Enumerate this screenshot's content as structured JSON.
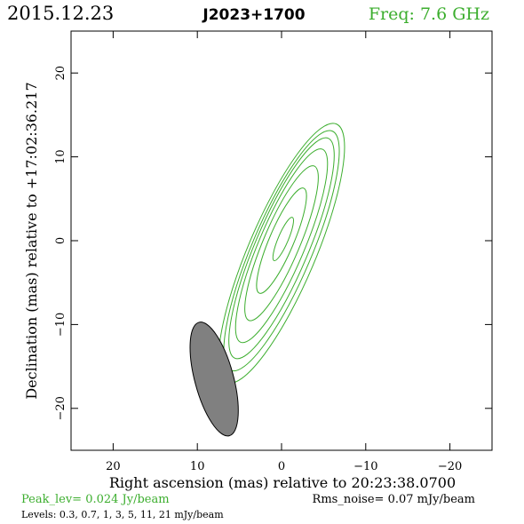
{
  "header": {
    "date": "2015.12.23",
    "source": "J2023+1700",
    "frequency": "Freq: 7.6 GHz"
  },
  "footer": {
    "peak": "Peak_lev=  0.024 Jy/beam",
    "rms": "Rms_noise= 0.07 mJy/beam",
    "levels": "Levels: 0.3, 0.7,   1,   3,   5,  11,  21 mJy/beam"
  },
  "colors": {
    "contour": "#3cae2e",
    "beam_fill": "#808080",
    "frame": "#000000"
  },
  "chart_data": {
    "type": "contour",
    "title": "J2023+1700",
    "xlabel": "Right ascension (mas) relative to 20:23:38.0700",
    "ylabel": "Declination (mas) relative to +17:02:36.217",
    "xlim": [
      25,
      -25
    ],
    "ylim": [
      -25,
      25
    ],
    "x_ticks": [
      20,
      10,
      0,
      -10,
      -20
    ],
    "y_ticks": [
      20,
      10,
      0,
      -10,
      -20
    ],
    "x_tick_labels": [
      "20",
      "10",
      "0",
      "−10",
      "−20"
    ],
    "y_tick_labels": [
      "20",
      "10",
      "0",
      "−10",
      "−20"
    ],
    "contour_levels_mJy": [
      0.3,
      0.7,
      1,
      3,
      5,
      11,
      21
    ],
    "peak_Jy_per_beam": 0.024,
    "rms_mJy_per_beam": 0.07,
    "contours": [
      {
        "level": 0.3,
        "cx": 0.0,
        "cy": -1.5,
        "major": 33.5,
        "minor": 8.0,
        "pa_deg": -23
      },
      {
        "level": 0.7,
        "cx": 0.0,
        "cy": -1.2,
        "major": 31.0,
        "minor": 7.1,
        "pa_deg": -23
      },
      {
        "level": 1,
        "cx": 0.0,
        "cy": -0.9,
        "major": 28.5,
        "minor": 6.3,
        "pa_deg": -23
      },
      {
        "level": 3,
        "cx": 0.0,
        "cy": -0.6,
        "major": 25.0,
        "minor": 5.4,
        "pa_deg": -23
      },
      {
        "level": 5,
        "cx": 0.0,
        "cy": -0.3,
        "major": 20.0,
        "minor": 4.3,
        "pa_deg": -23
      },
      {
        "level": 11,
        "cx": 0.0,
        "cy": 0.0,
        "major": 13.6,
        "minor": 2.9,
        "pa_deg": -23
      },
      {
        "level": 21,
        "cx": -0.2,
        "cy": 0.2,
        "major": 5.6,
        "minor": 1.2,
        "pa_deg": -23
      }
    ],
    "beam": {
      "cx": 8.0,
      "cy": -16.5,
      "major": 14.0,
      "minor": 4.6,
      "pa_deg": 15
    }
  }
}
